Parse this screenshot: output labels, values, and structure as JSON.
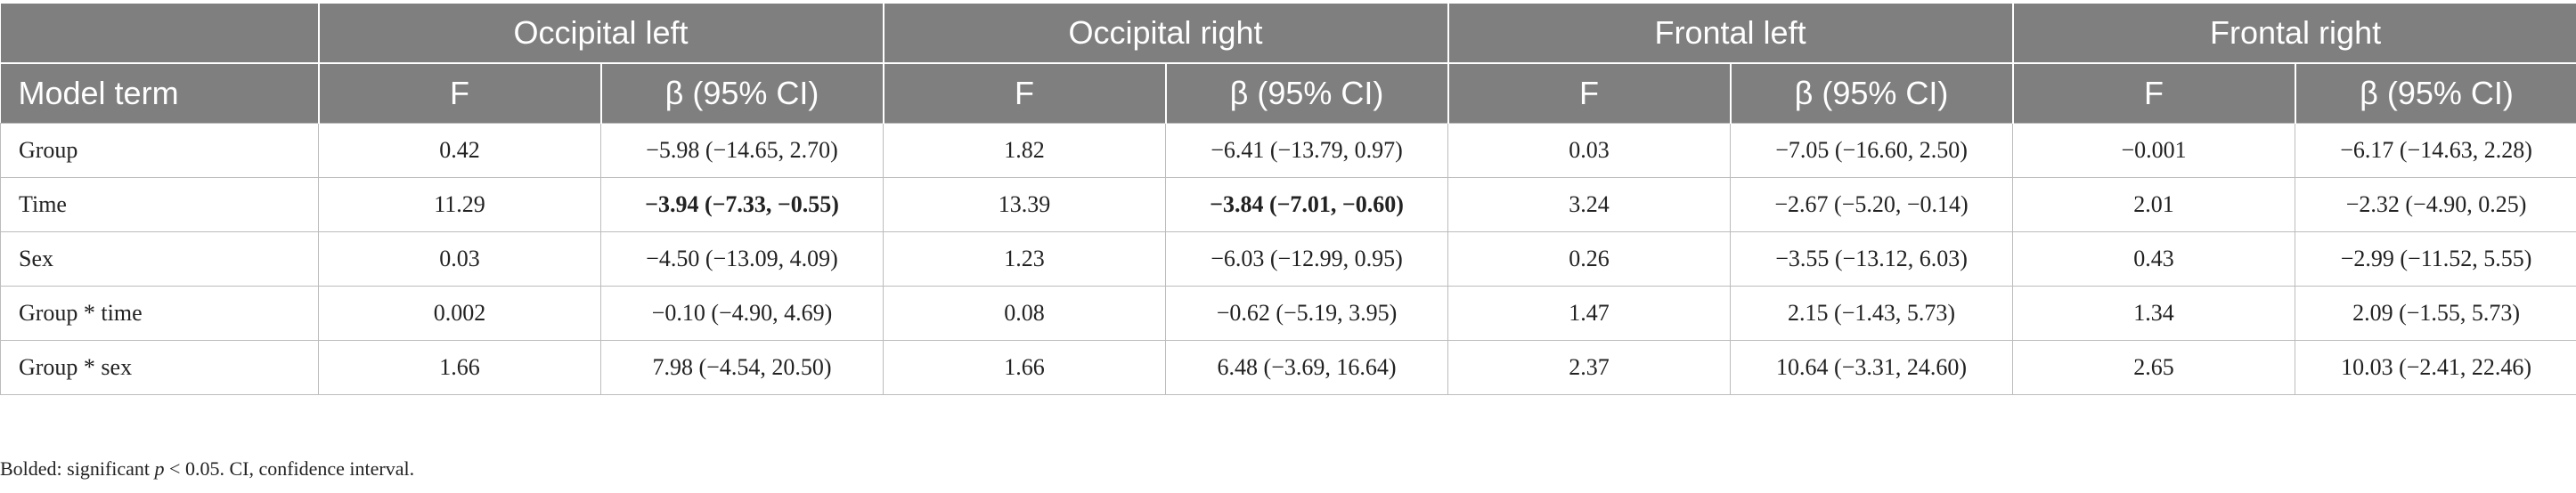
{
  "table": {
    "groups": [
      {
        "label": "Occipital left"
      },
      {
        "label": "Occipital right"
      },
      {
        "label": "Frontal left"
      },
      {
        "label": "Frontal right"
      }
    ],
    "columns": {
      "term": "Model term",
      "f": "F",
      "beta": "β (95% CI)"
    },
    "rows": [
      {
        "term": "Group",
        "cells": [
          {
            "f": "0.42",
            "beta": "−5.98 (−14.65, 2.70)",
            "bold": false
          },
          {
            "f": "1.82",
            "beta": "−6.41 (−13.79, 0.97)",
            "bold": false
          },
          {
            "f": "0.03",
            "beta": "−7.05 (−16.60, 2.50)",
            "bold": false
          },
          {
            "f": "−0.001",
            "beta": "−6.17 (−14.63, 2.28)",
            "bold": false
          }
        ]
      },
      {
        "term": "Time",
        "cells": [
          {
            "f": "11.29",
            "beta": "−3.94 (−7.33, −0.55)",
            "bold": true
          },
          {
            "f": "13.39",
            "beta": "−3.84 (−7.01, −0.60)",
            "bold": true
          },
          {
            "f": "3.24",
            "beta": "−2.67 (−5.20, −0.14)",
            "bold": false
          },
          {
            "f": "2.01",
            "beta": "−2.32 (−4.90, 0.25)",
            "bold": false
          }
        ]
      },
      {
        "term": "Sex",
        "cells": [
          {
            "f": "0.03",
            "beta": "−4.50 (−13.09, 4.09)",
            "bold": false
          },
          {
            "f": "1.23",
            "beta": "−6.03 (−12.99, 0.95)",
            "bold": false
          },
          {
            "f": "0.26",
            "beta": "−3.55 (−13.12, 6.03)",
            "bold": false
          },
          {
            "f": "0.43",
            "beta": "−2.99 (−11.52, 5.55)",
            "bold": false
          }
        ]
      },
      {
        "term": "Group * time",
        "cells": [
          {
            "f": "0.002",
            "beta": "−0.10 (−4.90, 4.69)",
            "bold": false
          },
          {
            "f": "0.08",
            "beta": "−0.62 (−5.19, 3.95)",
            "bold": false
          },
          {
            "f": "1.47",
            "beta": "2.15 (−1.43, 5.73)",
            "bold": false
          },
          {
            "f": "1.34",
            "beta": "2.09 (−1.55, 5.73)",
            "bold": false
          }
        ]
      },
      {
        "term": "Group * sex",
        "cells": [
          {
            "f": "1.66",
            "beta": "7.98 (−4.54, 20.50)",
            "bold": false
          },
          {
            "f": "1.66",
            "beta": "6.48 (−3.69, 16.64)",
            "bold": false
          },
          {
            "f": "2.37",
            "beta": "10.64 (−3.31, 24.60)",
            "bold": false
          },
          {
            "f": "2.65",
            "beta": "10.03 (−2.41, 22.46)",
            "bold": false
          }
        ]
      }
    ]
  },
  "footnote": {
    "prefix": "Bolded: significant ",
    "p": "p",
    "suffix": " < 0.05. CI, confidence interval."
  }
}
